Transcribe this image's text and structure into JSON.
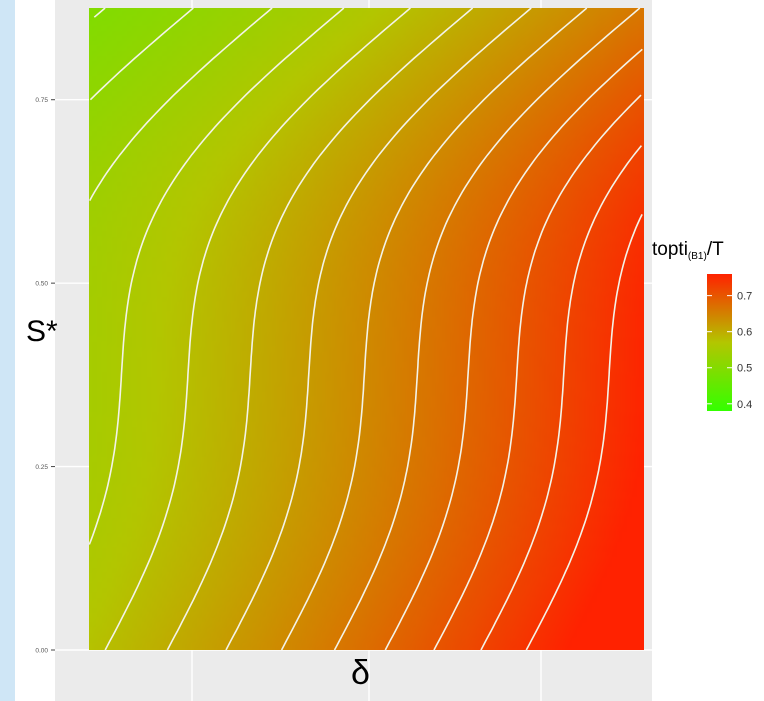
{
  "chart_data": {
    "type": "heatmap",
    "title": "",
    "xlabel": "δ",
    "ylabel": "S*",
    "ylim": [
      0,
      0.875
    ],
    "y_ticks": [
      {
        "value": 0.0,
        "label": "0.00"
      },
      {
        "value": 0.25,
        "label": "0.25"
      },
      {
        "value": 0.5,
        "label": "0.50"
      },
      {
        "value": 0.75,
        "label": "0.75"
      }
    ],
    "legend": {
      "title_main": "topti",
      "title_sub": "(B1)",
      "title_tail": "/T",
      "placement": "right",
      "color_low": "#33ff00",
      "color_mid": "#b3c600",
      "color_high": "#ff2200",
      "range": [
        0.38,
        0.76
      ],
      "ticks": [
        {
          "value": 0.7,
          "label": "0.7"
        },
        {
          "value": 0.6,
          "label": "0.6"
        },
        {
          "value": 0.5,
          "label": "0.5"
        },
        {
          "value": 0.4,
          "label": "0.4"
        }
      ]
    },
    "contour_levels": [
      0.4,
      0.42,
      0.44,
      0.46,
      0.48,
      0.5,
      0.52,
      0.54,
      0.56,
      0.58,
      0.6,
      0.62,
      0.64,
      0.66,
      0.68,
      0.7,
      0.72,
      0.74
    ],
    "contour_color": "#f3f3e8",
    "panel_background": "#ebebeb",
    "grid": true
  }
}
